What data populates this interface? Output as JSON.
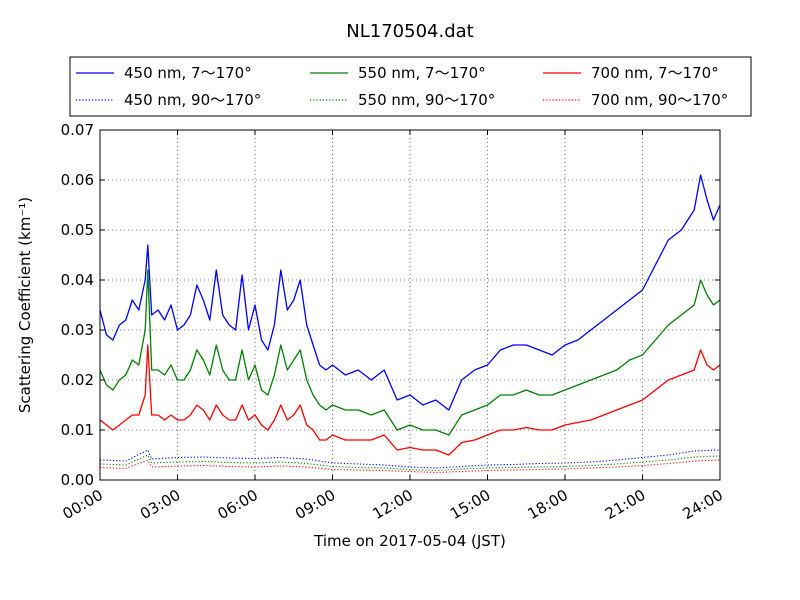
{
  "chart_data": {
    "type": "line",
    "title": "NL170504.dat",
    "xlabel": "Time on 2017-05-04 (JST)",
    "ylabel": "Scattering Coefficient (km⁻¹)",
    "xlim_hours": [
      0,
      24
    ],
    "ylim": [
      0,
      0.07
    ],
    "x_tick_labels": [
      "00:00",
      "03:00",
      "06:00",
      "09:00",
      "12:00",
      "15:00",
      "18:00",
      "21:00",
      "24:00"
    ],
    "y_tick_labels": [
      "0.00",
      "0.01",
      "0.02",
      "0.03",
      "0.04",
      "0.05",
      "0.06",
      "0.07"
    ],
    "grid": true,
    "legend_position": "top, above plot",
    "series": [
      {
        "name": "450 nm, 7～170°",
        "color": "#0000ff",
        "style": "solid",
        "x_hours": [
          0,
          0.25,
          0.5,
          0.75,
          1,
          1.25,
          1.5,
          1.75,
          1.85,
          2,
          2.25,
          2.5,
          2.75,
          3,
          3.25,
          3.5,
          3.75,
          4,
          4.25,
          4.5,
          4.75,
          5,
          5.25,
          5.5,
          5.75,
          6,
          6.25,
          6.5,
          6.75,
          7,
          7.25,
          7.5,
          7.75,
          8,
          8.25,
          8.5,
          8.75,
          9,
          9.5,
          10,
          10.5,
          11,
          11.5,
          12,
          12.5,
          13,
          13.5,
          14,
          14.5,
          15,
          15.5,
          16,
          16.5,
          17,
          17.5,
          18,
          18.5,
          19,
          19.5,
          20,
          20.5,
          21,
          21.5,
          22,
          22.5,
          23,
          23.25,
          23.5,
          23.75,
          24
        ],
        "values": [
          0.034,
          0.029,
          0.028,
          0.031,
          0.032,
          0.036,
          0.034,
          0.04,
          0.047,
          0.033,
          0.034,
          0.032,
          0.035,
          0.03,
          0.031,
          0.033,
          0.039,
          0.036,
          0.032,
          0.042,
          0.033,
          0.031,
          0.03,
          0.041,
          0.03,
          0.035,
          0.028,
          0.026,
          0.031,
          0.042,
          0.034,
          0.036,
          0.04,
          0.031,
          0.027,
          0.023,
          0.022,
          0.023,
          0.021,
          0.022,
          0.02,
          0.022,
          0.016,
          0.017,
          0.015,
          0.016,
          0.014,
          0.02,
          0.022,
          0.023,
          0.026,
          0.027,
          0.027,
          0.026,
          0.025,
          0.027,
          0.028,
          0.03,
          0.032,
          0.034,
          0.036,
          0.038,
          0.043,
          0.048,
          0.05,
          0.054,
          0.061,
          0.056,
          0.052,
          0.055
        ]
      },
      {
        "name": "450 nm, 90～170°",
        "color": "#0000ff",
        "style": "dotted",
        "x_hours": [
          0,
          1,
          1.85,
          2,
          3,
          4,
          5,
          6,
          7,
          8,
          9,
          10,
          11,
          12,
          13,
          14,
          15,
          16,
          17,
          18,
          19,
          20,
          21,
          22,
          23,
          24
        ],
        "values": [
          0.004,
          0.0038,
          0.006,
          0.0042,
          0.0045,
          0.0046,
          0.0044,
          0.0043,
          0.0045,
          0.0042,
          0.0034,
          0.0032,
          0.003,
          0.0026,
          0.0024,
          0.0027,
          0.003,
          0.0031,
          0.0033,
          0.0034,
          0.0036,
          0.004,
          0.0045,
          0.005,
          0.0058,
          0.006
        ]
      },
      {
        "name": "550 nm, 7～170°",
        "color": "#008000",
        "style": "solid",
        "x_hours": [
          0,
          0.25,
          0.5,
          0.75,
          1,
          1.25,
          1.5,
          1.75,
          1.85,
          2,
          2.25,
          2.5,
          2.75,
          3,
          3.25,
          3.5,
          3.75,
          4,
          4.25,
          4.5,
          4.75,
          5,
          5.25,
          5.5,
          5.75,
          6,
          6.25,
          6.5,
          6.75,
          7,
          7.25,
          7.5,
          7.75,
          8,
          8.25,
          8.5,
          8.75,
          9,
          9.5,
          10,
          10.5,
          11,
          11.5,
          12,
          12.5,
          13,
          13.5,
          14,
          14.5,
          15,
          15.5,
          16,
          16.5,
          17,
          17.5,
          18,
          18.5,
          19,
          19.5,
          20,
          20.5,
          21,
          21.5,
          22,
          22.5,
          23,
          23.25,
          23.5,
          23.75,
          24
        ],
        "values": [
          0.022,
          0.019,
          0.018,
          0.02,
          0.021,
          0.024,
          0.023,
          0.03,
          0.042,
          0.022,
          0.022,
          0.021,
          0.023,
          0.02,
          0.02,
          0.022,
          0.026,
          0.024,
          0.021,
          0.027,
          0.022,
          0.02,
          0.02,
          0.026,
          0.02,
          0.023,
          0.018,
          0.017,
          0.021,
          0.027,
          0.022,
          0.024,
          0.026,
          0.02,
          0.017,
          0.015,
          0.014,
          0.015,
          0.014,
          0.014,
          0.013,
          0.014,
          0.01,
          0.011,
          0.01,
          0.01,
          0.009,
          0.013,
          0.014,
          0.015,
          0.017,
          0.017,
          0.018,
          0.017,
          0.017,
          0.018,
          0.019,
          0.02,
          0.021,
          0.022,
          0.024,
          0.025,
          0.028,
          0.031,
          0.033,
          0.035,
          0.04,
          0.037,
          0.035,
          0.036
        ]
      },
      {
        "name": "550 nm, 90～170°",
        "color": "#008000",
        "style": "dotted",
        "x_hours": [
          0,
          1,
          1.85,
          2,
          3,
          4,
          5,
          6,
          7,
          8,
          9,
          10,
          11,
          12,
          13,
          14,
          15,
          16,
          17,
          18,
          19,
          20,
          21,
          22,
          23,
          24
        ],
        "values": [
          0.0032,
          0.003,
          0.005,
          0.0034,
          0.0036,
          0.0037,
          0.0035,
          0.0034,
          0.0036,
          0.0033,
          0.0027,
          0.0025,
          0.0024,
          0.0021,
          0.0019,
          0.0022,
          0.0024,
          0.0025,
          0.0026,
          0.0027,
          0.0029,
          0.0032,
          0.0036,
          0.004,
          0.0046,
          0.0048
        ]
      },
      {
        "name": "700 nm, 7～170°",
        "color": "#ff0000",
        "style": "solid",
        "x_hours": [
          0,
          0.25,
          0.5,
          0.75,
          1,
          1.25,
          1.5,
          1.75,
          1.85,
          2,
          2.25,
          2.5,
          2.75,
          3,
          3.25,
          3.5,
          3.75,
          4,
          4.25,
          4.5,
          4.75,
          5,
          5.25,
          5.5,
          5.75,
          6,
          6.25,
          6.5,
          6.75,
          7,
          7.25,
          7.5,
          7.75,
          8,
          8.25,
          8.5,
          8.75,
          9,
          9.5,
          10,
          10.5,
          11,
          11.5,
          12,
          12.5,
          13,
          13.5,
          14,
          14.5,
          15,
          15.5,
          16,
          16.5,
          17,
          17.5,
          18,
          18.5,
          19,
          19.5,
          20,
          20.5,
          21,
          21.5,
          22,
          22.5,
          23,
          23.25,
          23.5,
          23.75,
          24
        ],
        "values": [
          0.012,
          0.011,
          0.01,
          0.011,
          0.012,
          0.013,
          0.013,
          0.017,
          0.027,
          0.013,
          0.013,
          0.012,
          0.013,
          0.012,
          0.012,
          0.013,
          0.015,
          0.014,
          0.012,
          0.015,
          0.013,
          0.012,
          0.012,
          0.015,
          0.012,
          0.013,
          0.011,
          0.01,
          0.012,
          0.015,
          0.012,
          0.013,
          0.015,
          0.011,
          0.01,
          0.008,
          0.008,
          0.009,
          0.008,
          0.008,
          0.008,
          0.009,
          0.006,
          0.0065,
          0.006,
          0.006,
          0.005,
          0.0075,
          0.008,
          0.009,
          0.01,
          0.01,
          0.0105,
          0.01,
          0.01,
          0.011,
          0.0115,
          0.012,
          0.013,
          0.014,
          0.015,
          0.016,
          0.018,
          0.02,
          0.021,
          0.022,
          0.026,
          0.023,
          0.022,
          0.023
        ]
      },
      {
        "name": "700 nm, 90～170°",
        "color": "#ff0000",
        "style": "dotted",
        "x_hours": [
          0,
          1,
          1.85,
          2,
          3,
          4,
          5,
          6,
          7,
          8,
          9,
          10,
          11,
          12,
          13,
          14,
          15,
          16,
          17,
          18,
          19,
          20,
          21,
          22,
          23,
          24
        ],
        "values": [
          0.0025,
          0.0023,
          0.004,
          0.0026,
          0.0028,
          0.0029,
          0.0027,
          0.0026,
          0.0028,
          0.0026,
          0.0021,
          0.002,
          0.0019,
          0.0017,
          0.0015,
          0.0017,
          0.0019,
          0.002,
          0.0021,
          0.0022,
          0.0024,
          0.0026,
          0.0029,
          0.0033,
          0.0038,
          0.004
        ]
      }
    ]
  }
}
